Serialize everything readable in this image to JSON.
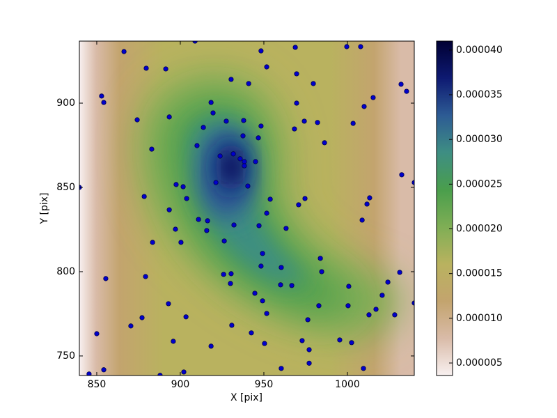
{
  "chart_data": {
    "type": "scatter",
    "xlabel": "X [pix]",
    "ylabel": "Y [pix]",
    "xlim": [
      839.6,
      1040
    ],
    "ylim": [
      738.4,
      936.8
    ],
    "xticks": [
      850,
      900,
      950,
      1000
    ],
    "yticks": [
      750,
      800,
      850,
      900
    ],
    "point_color": "#0000cc",
    "edge_color": "#00004d",
    "x": [
      839.6,
      845.4,
      854.2,
      850.0,
      855.4,
      852.9,
      854.2,
      866.3,
      874.2,
      879.6,
      891.3,
      893.4,
      882.9,
      878.4,
      893.4,
      883.4,
      879.2,
      870.4,
      877.1,
      892.9,
      895.8,
      902.1,
      887.9,
      903.4,
      897.5,
      901.7,
      903.8,
      897.1,
      900.4,
      908.8,
      910.0,
      913.8,
      919.6,
      918.4,
      927.5,
      923.8,
      921.3,
      910.9,
      916.3,
      915.8,
      926.3,
      925.9,
      930.4,
      930.0,
      930.8,
      918.4,
      932.1,
      931.7,
      935.8,
      937.5,
      937.9,
      938.3,
      938.3,
      940.4,
      945.0,
      946.7,
      948.3,
      948.3,
      951.7,
      940.9,
      930.4,
      947.1,
      949.2,
      948.3,
      953.8,
      951.7,
      963.3,
      960.4,
      960.0,
      944.6,
      949.2,
      951.7,
      942.5,
      950.4,
      960.4,
      968.3,
      968.8,
      969.6,
      969.6,
      970.8,
      974.2,
      974.6,
      979.6,
      982.1,
      986.3,
      972.9,
      977.1,
      977.1,
      976.3,
      966.7,
      982.9,
      983.8,
      984.6,
      995.4,
      1002.5,
      1000.4,
      1000.8,
      1003.4,
      999.6,
      1007.9,
      1010.0,
      1015.4,
      1013.3,
      1011.7,
      1008.8,
      1009.6,
      1012.9,
      1017.1,
      1020.8,
      1024.2,
      1028.3,
      1031.3,
      1032.1,
      1035.4,
      1032.5,
      1040.0,
      1040.0
    ],
    "y": [
      850.0,
      739.3,
      741.8,
      763.2,
      795.9,
      904.2,
      900.4,
      930.6,
      890.1,
      920.7,
      920.3,
      891.8,
      872.7,
      844.6,
      836.7,
      817.4,
      797.1,
      767.8,
      772.7,
      781.0,
      758.7,
      740.5,
      738.5,
      773.2,
      851.7,
      850.4,
      843.4,
      825.2,
      817.4,
      936.8,
      874.8,
      885.6,
      894.2,
      900.4,
      889.3,
      868.6,
      852.9,
      831.0,
      830.2,
      824.4,
      818.2,
      798.4,
      798.8,
      793.0,
      768.2,
      755.8,
      827.7,
      869.9,
      867.0,
      880.6,
      889.7,
      865.3,
      862.8,
      850.8,
      865.3,
      879.4,
      886.4,
      931.0,
      921.5,
      911.6,
      914.1,
      827.3,
      810.8,
      803.3,
      843.0,
      834.7,
      825.7,
      802.5,
      792.2,
      787.2,
      782.7,
      775.2,
      763.7,
      757.4,
      742.6,
      884.7,
      933.1,
      917.4,
      900.0,
      839.7,
      889.3,
      843.4,
      911.6,
      888.5,
      876.5,
      759.1,
      753.7,
      745.7,
      771.5,
      791.8,
      779.8,
      807.9,
      800.0,
      759.5,
      757.9,
      779.8,
      791.3,
      888.0,
      933.5,
      933.5,
      898.0,
      903.3,
      843.8,
      840.1,
      830.6,
      742.6,
      774.4,
      777.7,
      786.0,
      793.8,
      774.4,
      799.6,
      911.2,
      907.0,
      857.5,
      852.9,
      781.4
    ],
    "colorbar": {
      "lim": [
        3.6e-06,
        4.1e-05
      ],
      "ticks": [
        5e-06,
        {
          "value": 1e-05,
          "label": "0.000010"
        },
        1.5e-05,
        {
          "value": 2e-05,
          "label": "0.000020"
        },
        2.5e-05,
        {
          "value": 3e-05,
          "label": "0.000030"
        },
        3.5e-05,
        {
          "value": 4e-05,
          "label": "0.000040"
        }
      ],
      "colormap": [
        "#f8f0f0",
        "#d9bba8",
        "#c3a46e",
        "#b9b25f",
        "#7fae55",
        "#4a9e4c",
        "#3e8e83",
        "#2d5b94",
        "#0e1a72",
        "#000033"
      ]
    }
  }
}
